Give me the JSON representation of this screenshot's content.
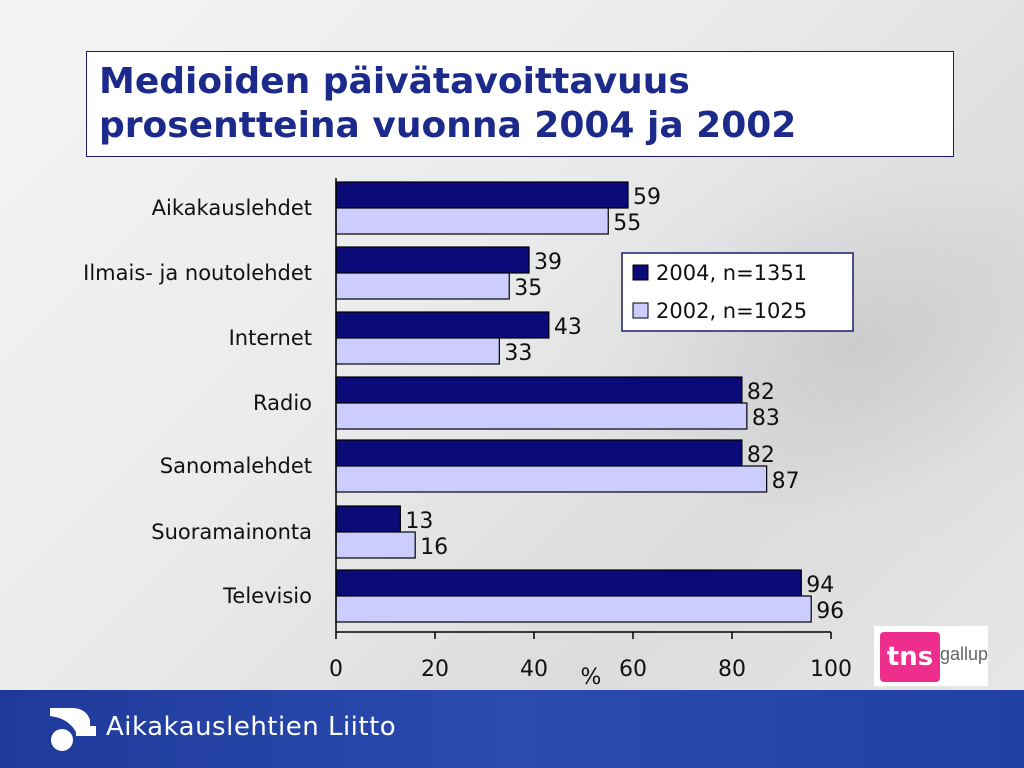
{
  "title": "Medioiden päivätavoittavuus\nprosentteina vuonna 2004 ja 2002",
  "footer": {
    "org_name": "Aikakauslehtien Liitto"
  },
  "brand": {
    "tns": "tns",
    "gallup": "gallup"
  },
  "colors": {
    "series_2004": "#0a0a78",
    "series_2002": "#ccccff",
    "title": "#1c2a8c",
    "footer": "#2c4bb0",
    "tns_pink": "#ee2e8c"
  },
  "chart_data": {
    "type": "bar",
    "orientation": "horizontal",
    "categories": [
      "Aikakauslehdet",
      "Ilmais- ja noutolehdet",
      "Internet",
      "Radio",
      "Sanomalehdet",
      "Suoramainonta",
      "Televisio"
    ],
    "series": [
      {
        "name": "2004, n=1351",
        "values": [
          59,
          39,
          43,
          82,
          82,
          13,
          94
        ]
      },
      {
        "name": "2002, n=1025",
        "values": [
          55,
          35,
          33,
          83,
          87,
          16,
          96
        ]
      }
    ],
    "xlabel": "%",
    "xlim": [
      0,
      100
    ],
    "xticks": [
      0,
      20,
      40,
      60,
      80,
      100
    ],
    "legend_position": "right",
    "grid": false
  }
}
